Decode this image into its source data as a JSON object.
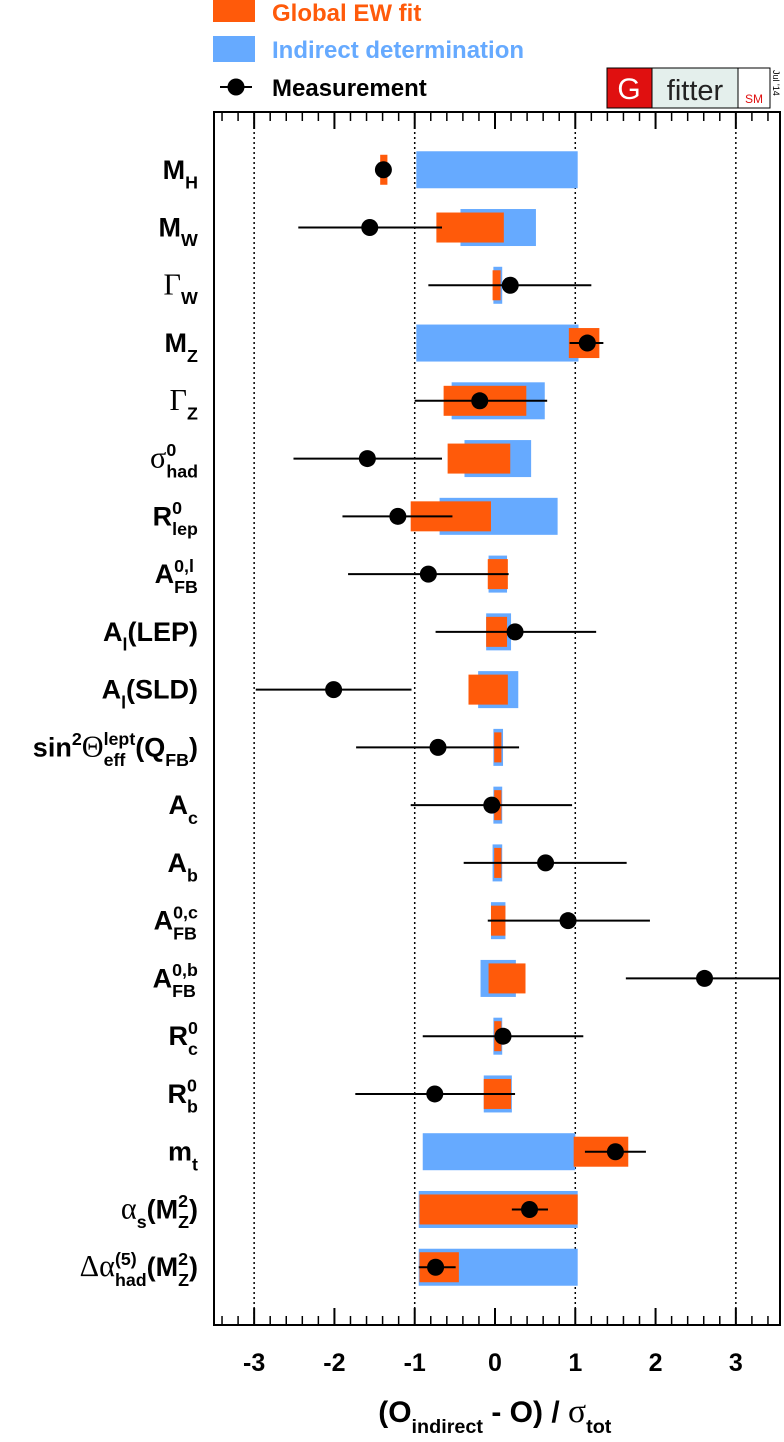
{
  "chart_data": {
    "type": "pull",
    "legend": "top-left",
    "xlim": [
      -3.5,
      3.55
    ],
    "xticks": [
      -3,
      -2,
      -1,
      0,
      1,
      2,
      3
    ],
    "xminorticks": [
      -3.4,
      -3.2,
      -2.8,
      -2.6,
      -2.4,
      -2.2,
      -1.8,
      -1.6,
      -1.4,
      -1.2,
      -0.8,
      -0.6,
      -0.4,
      -0.2,
      0.2,
      0.4,
      0.6,
      0.8,
      1.2,
      1.4,
      1.6,
      1.8,
      2.2,
      2.4,
      2.6,
      2.8,
      3.2,
      3.4
    ],
    "xgrid": [
      -3,
      -1,
      1,
      3
    ],
    "xlabel": [
      {
        "t": "(O"
      },
      {
        "t": "indirect",
        "pos": "sub"
      },
      {
        "t": " - O) /  "
      },
      {
        "t": "σ"
      },
      {
        "t": "tot",
        "pos": "sub"
      }
    ],
    "logo": {
      "g": "G",
      "text": "fitter",
      "sm": "SM",
      "date": "Jul '14"
    },
    "categories": [
      [
        {
          "t": "M"
        },
        {
          "t": "H",
          "pos": "sub"
        }
      ],
      [
        {
          "t": "M"
        },
        {
          "t": "W",
          "pos": "sub"
        }
      ],
      [
        {
          "t": "Γ"
        },
        {
          "t": "W",
          "pos": "sub"
        }
      ],
      [
        {
          "t": "M"
        },
        {
          "t": "Z",
          "pos": "sub"
        }
      ],
      [
        {
          "t": "Γ"
        },
        {
          "t": "Z",
          "pos": "sub"
        }
      ],
      [
        {
          "t": "σ"
        },
        {
          "t": "0",
          "pos": "sup"
        },
        {
          "t": "had",
          "pos": "sub"
        }
      ],
      [
        {
          "t": "R"
        },
        {
          "t": "0",
          "pos": "sup"
        },
        {
          "t": "lep",
          "pos": "sub"
        }
      ],
      [
        {
          "t": "A"
        },
        {
          "t": "0,l",
          "pos": "sup"
        },
        {
          "t": "FB",
          "pos": "sub"
        }
      ],
      [
        {
          "t": "A"
        },
        {
          "t": "l",
          "pos": "sub"
        },
        {
          "t": "(LEP)"
        }
      ],
      [
        {
          "t": "A"
        },
        {
          "t": "l",
          "pos": "sub"
        },
        {
          "t": "(SLD)"
        }
      ],
      [
        {
          "t": "sin"
        },
        {
          "t": "2",
          "pos": "sup"
        },
        {
          "t": "Θ"
        },
        {
          "t": "lept",
          "pos": "sup"
        },
        {
          "t": "eff",
          "pos": "sub"
        },
        {
          "t": "(Q"
        },
        {
          "t": "FB",
          "pos": "sub"
        },
        {
          "t": ")"
        }
      ],
      [
        {
          "t": "A"
        },
        {
          "t": "c",
          "pos": "sub"
        }
      ],
      [
        {
          "t": "A"
        },
        {
          "t": "b",
          "pos": "sub"
        }
      ],
      [
        {
          "t": "A"
        },
        {
          "t": "0,c",
          "pos": "sup"
        },
        {
          "t": "FB",
          "pos": "sub"
        }
      ],
      [
        {
          "t": "A"
        },
        {
          "t": "0,b",
          "pos": "sup"
        },
        {
          "t": "FB",
          "pos": "sub"
        }
      ],
      [
        {
          "t": "R"
        },
        {
          "t": "0",
          "pos": "sup"
        },
        {
          "t": "c",
          "pos": "sub"
        }
      ],
      [
        {
          "t": "R"
        },
        {
          "t": "0",
          "pos": "sup"
        },
        {
          "t": "b",
          "pos": "sub"
        }
      ],
      [
        {
          "t": "m"
        },
        {
          "t": "t",
          "pos": "sub"
        }
      ],
      [
        {
          "t": "α"
        },
        {
          "t": "s",
          "pos": "sub"
        },
        {
          "t": "(M"
        },
        {
          "t": "2",
          "pos": "sup"
        },
        {
          "t": "Z",
          "pos": "sub"
        },
        {
          "t": ")"
        }
      ],
      [
        {
          "t": "Δα"
        },
        {
          "t": "(5)",
          "pos": "sup"
        },
        {
          "t": "had",
          "pos": "sub"
        },
        {
          "t": "(M"
        },
        {
          "t": "2",
          "pos": "sup"
        },
        {
          "t": "Z",
          "pos": "sub"
        },
        {
          "t": ")"
        }
      ]
    ],
    "series": [
      {
        "name": "Global EW fit",
        "color": "#ff5a0a",
        "low": [
          -1.43,
          -0.73,
          -0.03,
          0.92,
          -0.64,
          -0.59,
          -1.05,
          -0.09,
          -0.11,
          -0.33,
          -0.01,
          -0.01,
          -0.01,
          -0.05,
          -0.08,
          -0.01,
          -0.14,
          0.98,
          -0.94,
          -0.94
        ],
        "high": [
          -1.34,
          0.11,
          0.07,
          1.3,
          0.39,
          0.19,
          -0.05,
          0.16,
          0.15,
          0.16,
          0.08,
          0.08,
          0.08,
          0.13,
          0.38,
          0.08,
          0.2,
          1.66,
          1.03,
          -0.45
        ]
      },
      {
        "name": "Indirect determination",
        "color": "#66aaff",
        "low": [
          -0.98,
          -0.43,
          -0.02,
          -0.98,
          -0.54,
          -0.38,
          -0.69,
          -0.08,
          -0.11,
          -0.21,
          -0.02,
          -0.02,
          -0.03,
          -0.05,
          -0.18,
          -0.02,
          -0.14,
          -0.9,
          -0.95,
          -0.95
        ],
        "high": [
          1.03,
          0.51,
          0.09,
          1.04,
          0.62,
          0.45,
          0.78,
          0.15,
          0.2,
          0.29,
          0.1,
          0.09,
          0.09,
          0.13,
          0.26,
          0.09,
          0.21,
          1.0,
          1.03,
          1.03
        ]
      },
      {
        "name": "Measurement",
        "color": "#000000",
        "values": [
          -1.39,
          -1.56,
          0.19,
          1.15,
          -0.19,
          -1.59,
          -1.21,
          -0.83,
          0.25,
          -2.01,
          -0.71,
          -0.04,
          0.63,
          0.91,
          2.61,
          0.1,
          -0.75,
          1.5,
          0.43,
          -0.74
        ],
        "err_low": [
          null,
          -2.45,
          -0.83,
          0.93,
          -1.0,
          -2.51,
          -1.9,
          -1.83,
          -0.74,
          -2.98,
          -1.73,
          -1.05,
          -0.39,
          -0.09,
          1.63,
          -0.9,
          -1.74,
          1.12,
          0.21,
          -0.95
        ],
        "err_high": [
          null,
          -0.66,
          1.2,
          1.35,
          0.65,
          -0.66,
          -0.53,
          0.17,
          1.26,
          -1.04,
          0.3,
          0.96,
          1.64,
          1.93,
          3.6,
          1.1,
          0.25,
          1.88,
          0.66,
          -0.49
        ]
      }
    ]
  }
}
